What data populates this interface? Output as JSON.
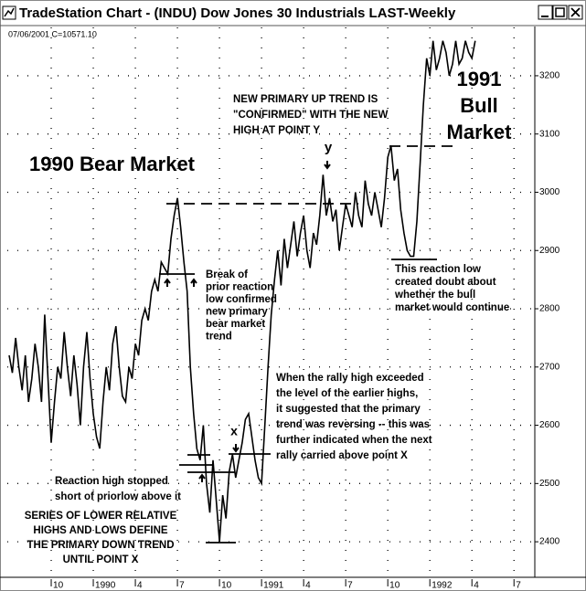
{
  "window_title": "TradeStation Chart - (INDU) Dow Jones 30 Industrials LAST-Weekly",
  "chart_data": {
    "type": "line",
    "subtitle": "07/06/2001  C=10571.10",
    "color": "#000000",
    "grid": true,
    "ylim": [
      2339,
      3283
    ],
    "yticks": [
      2400,
      2500,
      2600,
      2700,
      2800,
      2900,
      3000,
      3100,
      3200
    ],
    "categories": [
      null,
      null,
      null,
      null,
      null,
      null,
      null,
      null,
      null,
      null,
      null,
      null,
      null,
      "10",
      null,
      null,
      null,
      null,
      null,
      null,
      null,
      null,
      null,
      null,
      null,
      null,
      "1990",
      null,
      null,
      null,
      null,
      null,
      null,
      null,
      null,
      null,
      null,
      null,
      null,
      "4",
      null,
      null,
      null,
      null,
      null,
      null,
      null,
      null,
      null,
      null,
      null,
      null,
      "7",
      null,
      null,
      null,
      null,
      null,
      null,
      null,
      null,
      null,
      null,
      null,
      null,
      "10",
      null,
      null,
      null,
      null,
      null,
      null,
      null,
      null,
      null,
      null,
      null,
      null,
      "1991",
      null,
      null,
      null,
      null,
      null,
      null,
      null,
      null,
      null,
      null,
      null,
      null,
      "4",
      null,
      null,
      null,
      null,
      null,
      null,
      null,
      null,
      null,
      null,
      null,
      null,
      "7",
      null,
      null,
      null,
      null,
      null,
      null,
      null,
      null,
      null,
      null,
      null,
      null,
      "10",
      null,
      null,
      null,
      null,
      null,
      null,
      null,
      null,
      null,
      null,
      null,
      null,
      "1992",
      null,
      null,
      null,
      null,
      null,
      null,
      null,
      null,
      null,
      null,
      null,
      null,
      "4",
      null,
      null,
      null,
      null,
      null,
      null,
      null,
      null,
      null,
      null,
      null,
      null,
      "7"
    ],
    "values": [
      2720,
      2690,
      2750,
      2700,
      2660,
      2720,
      2640,
      2680,
      2740,
      2700,
      2640,
      2790,
      2680,
      2570,
      2640,
      2700,
      2680,
      2760,
      2700,
      2650,
      2720,
      2670,
      2600,
      2700,
      2760,
      2680,
      2620,
      2580,
      2560,
      2640,
      2700,
      2660,
      2740,
      2770,
      2700,
      2650,
      2640,
      2700,
      2680,
      2740,
      2720,
      2780,
      2800,
      2780,
      2830,
      2850,
      2830,
      2880,
      2870,
      2860,
      2920,
      2960,
      2990,
      2940,
      2880,
      2830,
      2700,
      2620,
      2560,
      2540,
      2600,
      2500,
      2450,
      2540,
      2470,
      2400,
      2480,
      2440,
      2520,
      2550,
      2510,
      2540,
      2570,
      2610,
      2620,
      2580,
      2540,
      2510,
      2500,
      2600,
      2700,
      2790,
      2850,
      2900,
      2840,
      2920,
      2870,
      2910,
      2950,
      2890,
      2930,
      2960,
      2900,
      2870,
      2930,
      2910,
      2960,
      3030,
      2960,
      2990,
      2950,
      2970,
      2900,
      2940,
      2980,
      2960,
      2940,
      3000,
      2960,
      2940,
      3020,
      2980,
      2960,
      3000,
      2970,
      2940,
      2990,
      3060,
      3080,
      3020,
      3040,
      2970,
      2930,
      2900,
      2890,
      2890,
      2950,
      3050,
      3150,
      3230,
      3200,
      3260,
      3210,
      3230,
      3260,
      3240,
      3200,
      3220,
      3260,
      3220,
      3230,
      3260,
      3240,
      3230,
      3260,
      null,
      null,
      null,
      null,
      null,
      null,
      null,
      null,
      null,
      null,
      null,
      null
    ],
    "annotations": [
      [
        "1990 Bear Market"
      ],
      [
        "1991",
        "Bull",
        "Market"
      ],
      [
        "NEW PRIMARY UP TREND IS",
        "\"CONFIRMED\" WITH THE NEW",
        "HIGH AT POINT Y"
      ],
      [
        "y"
      ],
      [
        "Break of",
        "prior reaction",
        "low confirmed",
        "new primary",
        "bear market",
        "trend"
      ],
      [
        "This reaction low",
        "created doubt about",
        "whether the bull",
        "market would continue"
      ],
      [
        "When the rally high exceeded",
        "the level of the earlier highs,",
        "it suggested that the primary",
        "trend was reversing -- this was",
        "further indicated when the next",
        "rally carried above point X"
      ],
      [
        "x"
      ],
      [
        "Reaction high stopped",
        "short of priorlow above it"
      ],
      [
        "SERIES OF LOWER RELATIVE",
        "HIGHS AND LOWS DEFINE",
        "THE PRIMARY DOWN TREND",
        "UNTIL POINT X"
      ]
    ]
  }
}
